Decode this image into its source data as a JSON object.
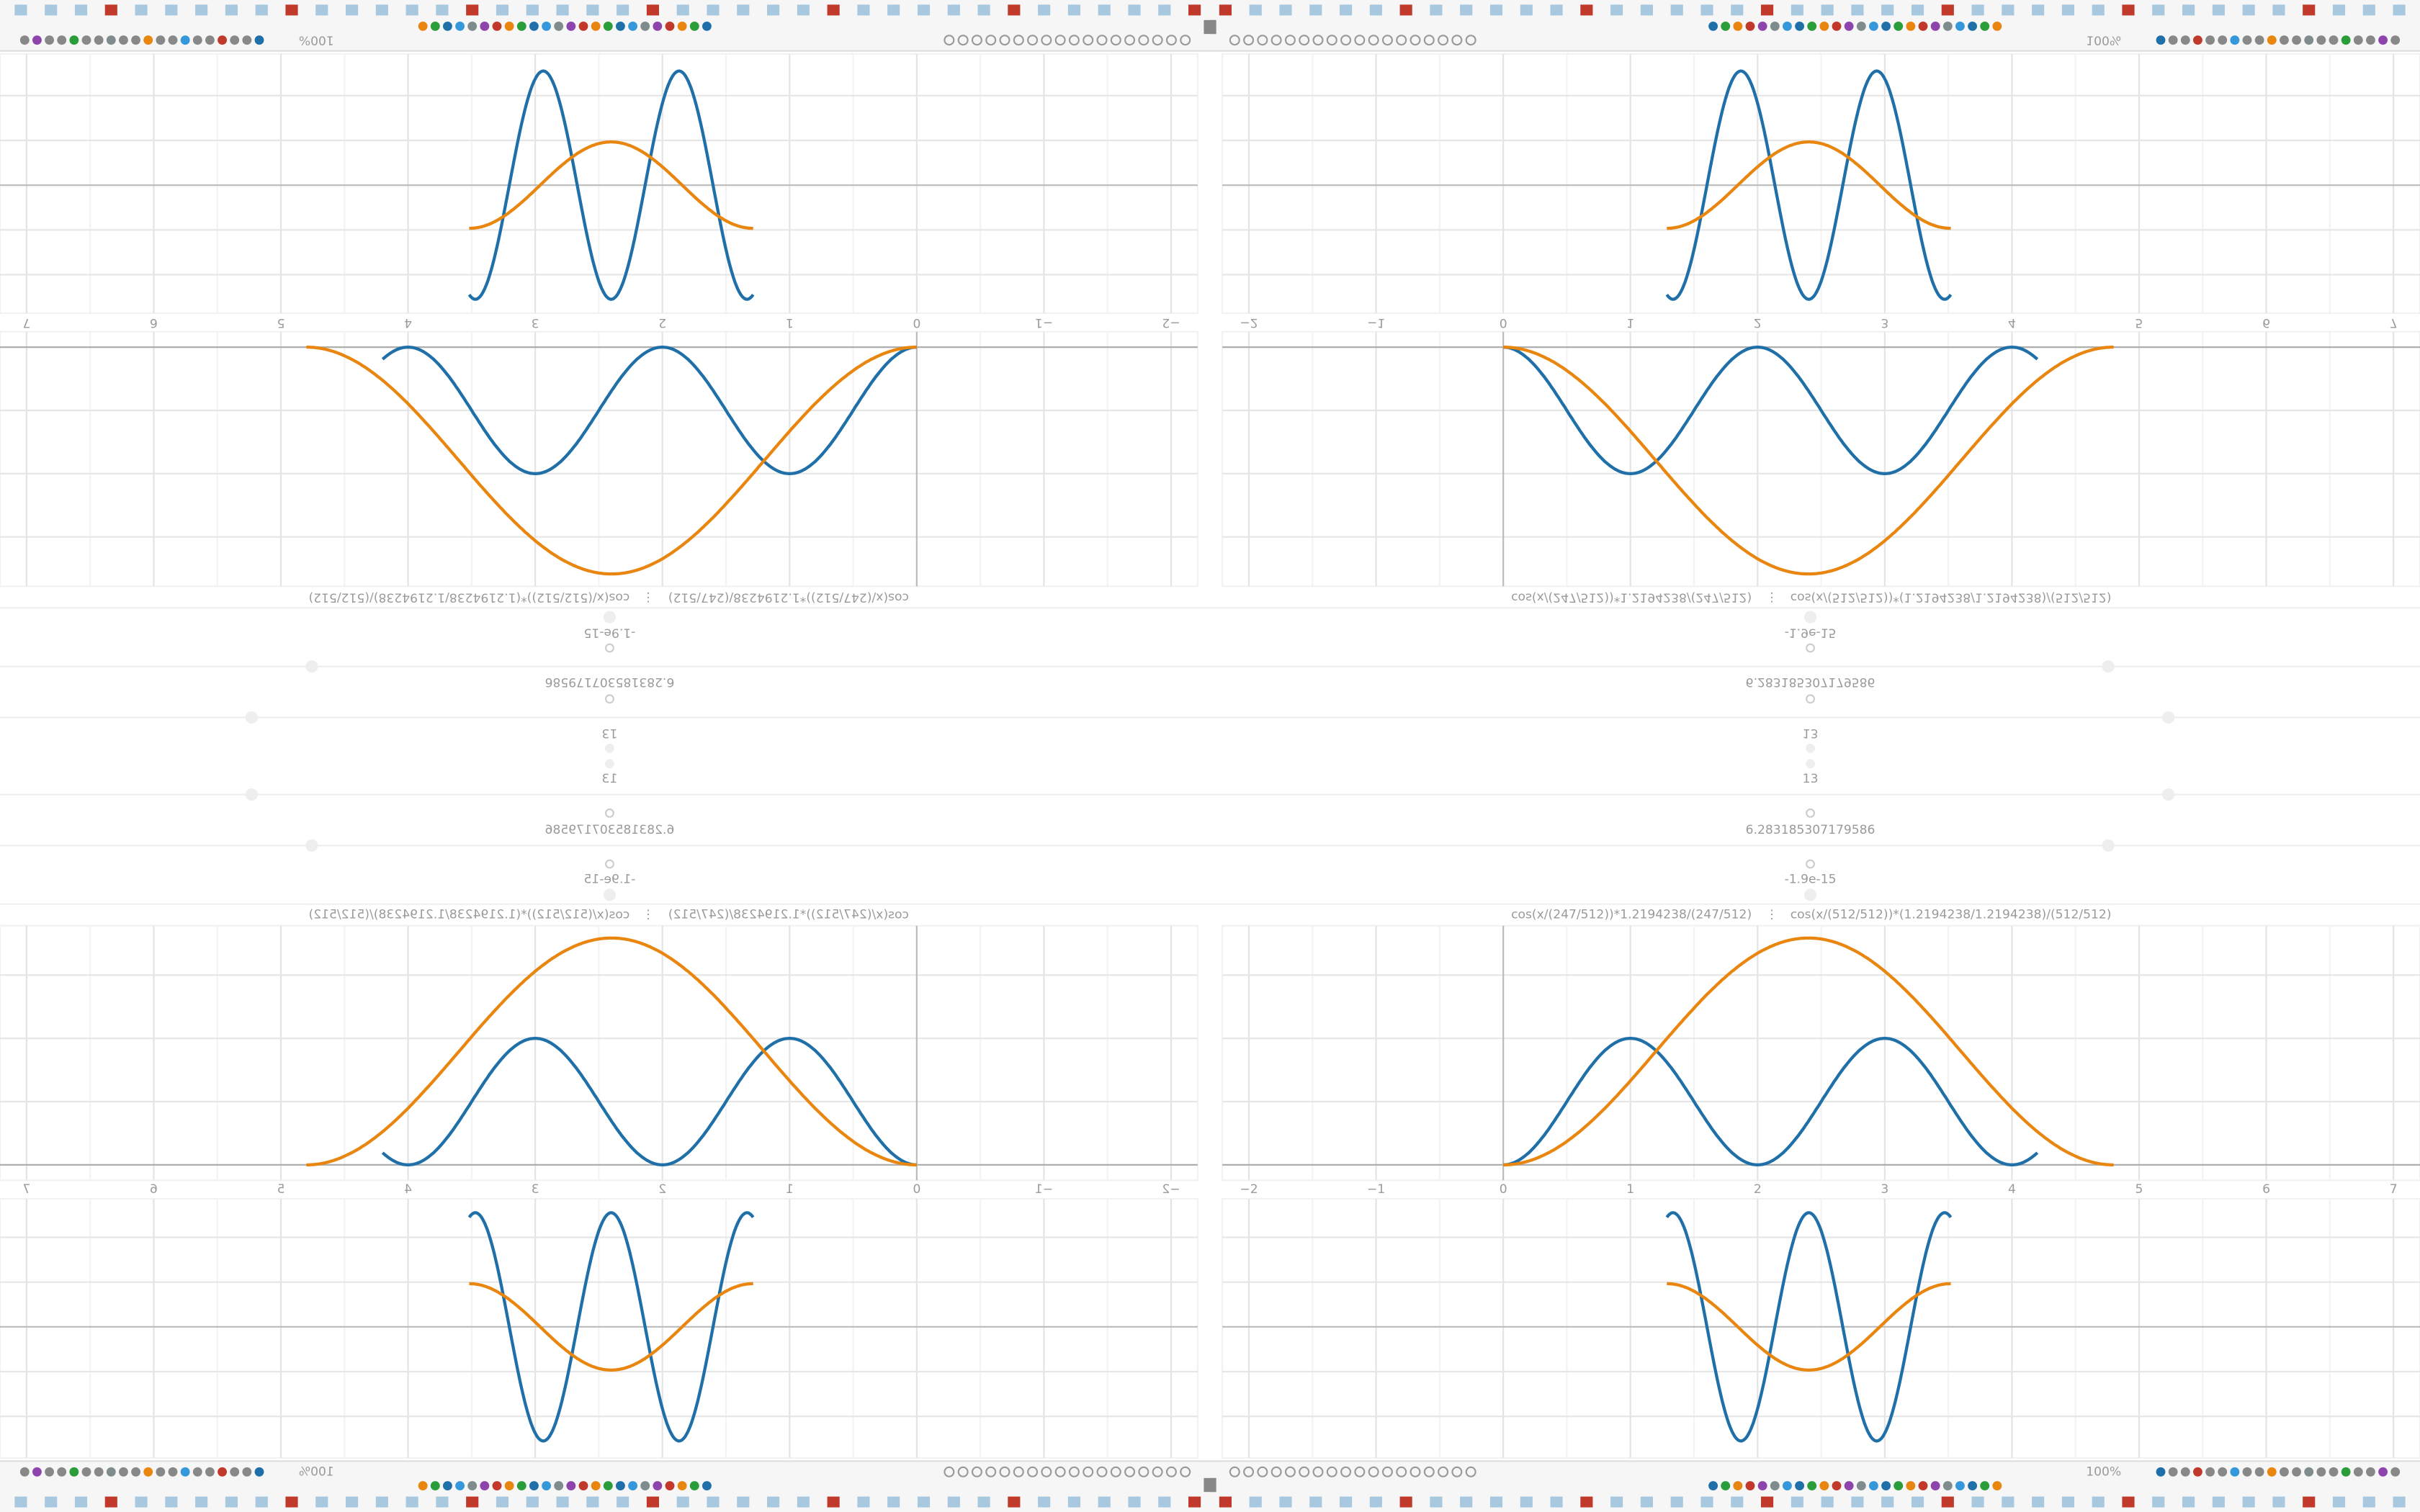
{
  "toolbar": {
    "zoom": "100%"
  },
  "panel": {
    "formulas": [
      "cos(x/(247/512))*1.2194238/(247/512)",
      "cos(x/(512/512))*(1.2194238/1.2194238)/(512/512)"
    ],
    "separator": "⋮",
    "fields": {
      "count": "13",
      "period": "6.283185307179586",
      "offset": "-1.9e-15"
    },
    "x_tick_labels": [
      "−2",
      "−1",
      "0",
      "1",
      "2",
      "3",
      "4",
      "5",
      "6",
      "7"
    ]
  }
}
